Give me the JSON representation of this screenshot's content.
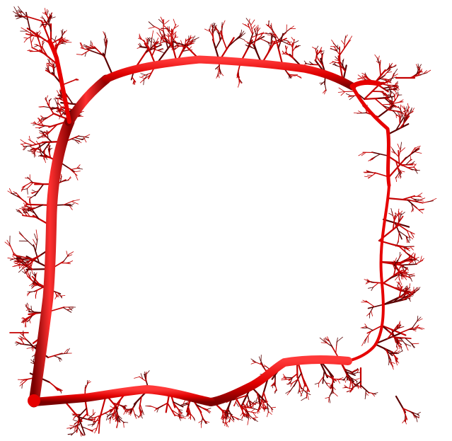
{
  "scene": {
    "subject": "vascular-tree-render",
    "background": "#ffffff",
    "vessel_colors": {
      "trunk_light": "#ff2a2a",
      "trunk_mid": "#e60000",
      "trunk_dark": "#8a0000",
      "twig": "#c40000",
      "twig_dark": "#5a0000"
    }
  }
}
